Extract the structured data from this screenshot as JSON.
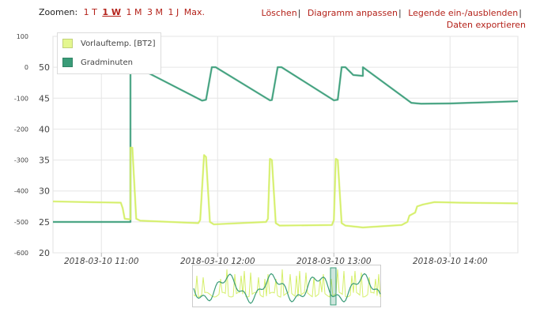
{
  "toolbar": {
    "zoom_label": "Zoomen:",
    "zoom_options": [
      "1 T",
      "1 W",
      "1 M",
      "3 M",
      "1 J",
      "Max."
    ],
    "zoom_active": 1,
    "actions": [
      {
        "label": "Löschen"
      },
      {
        "label": "Diagramm anpassen"
      },
      {
        "label": "Legende ein-/ausblenden"
      },
      {
        "label": "Daten exportieren"
      }
    ],
    "separator": "|"
  },
  "colors": {
    "vorlauf": "#dff58a",
    "vorlauf_line": "#d5ef6a",
    "grad": "#3a9c78",
    "grad_line": "#3e9f7c",
    "grid": "#e6e6e6",
    "axis_text": "#444444"
  },
  "legend": {
    "items": [
      {
        "name": "Vorlauftemp. [BT2]",
        "color": "#e4f78f"
      },
      {
        "name": "Gradminuten",
        "color": "#3a9c78"
      }
    ]
  },
  "chart_data": {
    "type": "line",
    "x_ticks": [
      "2018-03-10 11:00",
      "2018-03-10 12:00",
      "2018-03-10 13:00",
      "2018-03-10 14:00"
    ],
    "xlim": [
      "2018-03-10 10:35",
      "2018-03-10 14:35"
    ],
    "y_left": {
      "ticks": [
        100,
        0,
        -100,
        -200,
        -300,
        -400,
        -500,
        -600
      ],
      "ylim": [
        -600,
        100
      ]
    },
    "y_right": {
      "ticks": [
        50,
        45,
        40,
        35,
        30,
        25,
        20
      ],
      "ylim": [
        20,
        55
      ]
    },
    "grid": true,
    "legend_position": "top-left",
    "series": [
      {
        "name": "Gradminuten",
        "axis": "left",
        "points": [
          [
            "2018-03-10 10:35",
            -500
          ],
          [
            "2018-03-10 11:15",
            -500
          ],
          [
            "2018-03-10 11:15",
            0
          ],
          [
            "2018-03-10 11:20",
            -5
          ],
          [
            "2018-03-10 11:52",
            -108
          ],
          [
            "2018-03-10 11:54",
            -105
          ],
          [
            "2018-03-10 11:57",
            0
          ],
          [
            "2018-03-10 11:59",
            0
          ],
          [
            "2018-03-10 12:27",
            -107
          ],
          [
            "2018-03-10 12:28",
            -106
          ],
          [
            "2018-03-10 12:31",
            0
          ],
          [
            "2018-03-10 12:33",
            0
          ],
          [
            "2018-03-10 13:00",
            -107
          ],
          [
            "2018-03-10 13:02",
            -105
          ],
          [
            "2018-03-10 13:04",
            0
          ],
          [
            "2018-03-10 13:06",
            0
          ],
          [
            "2018-03-10 13:10",
            -25
          ],
          [
            "2018-03-10 13:15",
            -28
          ],
          [
            "2018-03-10 13:15",
            0
          ],
          [
            "2018-03-10 13:40",
            -115
          ],
          [
            "2018-03-10 13:45",
            -118
          ],
          [
            "2018-03-10 14:00",
            -117
          ],
          [
            "2018-03-10 14:35",
            -110
          ]
        ]
      },
      {
        "name": "Vorlauftemp. [BT2]",
        "axis": "right",
        "points": [
          [
            "2018-03-10 10:35",
            28.3
          ],
          [
            "2018-03-10 11:10",
            28.1
          ],
          [
            "2018-03-10 11:11",
            27.2
          ],
          [
            "2018-03-10 11:12",
            25.5
          ],
          [
            "2018-03-10 11:15",
            25.4
          ],
          [
            "2018-03-10 11:15",
            37.0
          ],
          [
            "2018-03-10 11:16",
            37.0
          ],
          [
            "2018-03-10 11:18",
            25.5
          ],
          [
            "2018-03-10 11:20",
            25.2
          ],
          [
            "2018-03-10 11:50",
            24.8
          ],
          [
            "2018-03-10 11:51",
            25.3
          ],
          [
            "2018-03-10 11:53",
            35.8
          ],
          [
            "2018-03-10 11:54",
            35.5
          ],
          [
            "2018-03-10 11:56",
            25.0
          ],
          [
            "2018-03-10 11:58",
            24.6
          ],
          [
            "2018-03-10 12:25",
            25.0
          ],
          [
            "2018-03-10 12:26",
            25.5
          ],
          [
            "2018-03-10 12:27",
            35.2
          ],
          [
            "2018-03-10 12:28",
            35.0
          ],
          [
            "2018-03-10 12:30",
            24.8
          ],
          [
            "2018-03-10 12:32",
            24.4
          ],
          [
            "2018-03-10 12:59",
            24.5
          ],
          [
            "2018-03-10 13:00",
            25.3
          ],
          [
            "2018-03-10 13:01",
            35.2
          ],
          [
            "2018-03-10 13:02",
            35.0
          ],
          [
            "2018-03-10 13:04",
            24.8
          ],
          [
            "2018-03-10 13:06",
            24.4
          ],
          [
            "2018-03-10 13:15",
            24.1
          ],
          [
            "2018-03-10 13:35",
            24.5
          ],
          [
            "2018-03-10 13:38",
            25.0
          ],
          [
            "2018-03-10 13:39",
            26.0
          ],
          [
            "2018-03-10 13:42",
            26.5
          ],
          [
            "2018-03-10 13:43",
            27.5
          ],
          [
            "2018-03-10 13:46",
            27.8
          ],
          [
            "2018-03-10 13:52",
            28.2
          ],
          [
            "2018-03-10 14:05",
            28.1
          ],
          [
            "2018-03-10 14:35",
            28.0
          ]
        ]
      }
    ]
  }
}
